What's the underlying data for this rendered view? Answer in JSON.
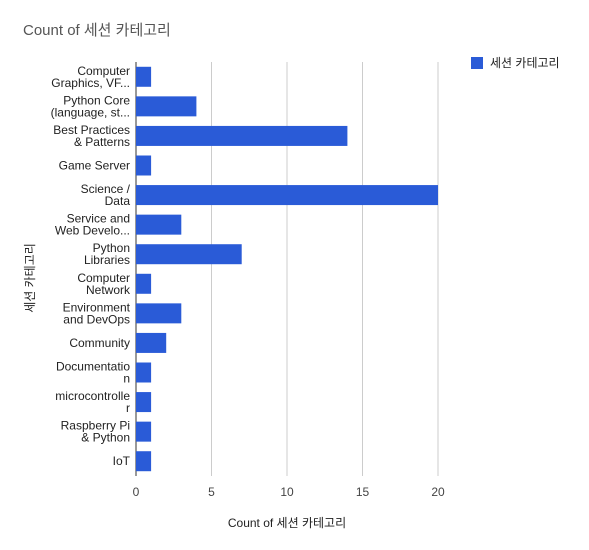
{
  "chart_data": {
    "type": "bar",
    "orientation": "horizontal",
    "title": "Count of 세션 카테고리",
    "xlabel": "Count of 세션 카테고리",
    "ylabel": "세션 카테고리",
    "categories": [
      [
        "Computer",
        "Graphics, VF..."
      ],
      [
        "Python Core",
        "(language, st..."
      ],
      [
        "Best Practices",
        "& Patterns"
      ],
      [
        "Game Server"
      ],
      [
        "Science /",
        "Data"
      ],
      [
        "Service and",
        "Web Develo..."
      ],
      [
        "Python",
        "Libraries"
      ],
      [
        "Computer",
        "Network"
      ],
      [
        "Environment",
        "and DevOps"
      ],
      [
        "Community"
      ],
      [
        "Documentatio",
        "n"
      ],
      [
        "microcontrolle",
        "r"
      ],
      [
        "Raspberry Pi",
        "& Python"
      ],
      [
        "IoT"
      ]
    ],
    "series": [
      {
        "name": "세션 카테고리",
        "color": "#2a5bd7",
        "values": [
          1,
          4,
          14,
          1,
          20,
          3,
          7,
          1,
          3,
          2,
          1,
          1,
          1,
          1
        ]
      }
    ],
    "xlim": [
      0,
      20
    ],
    "xticks": [
      "0",
      "5",
      "10",
      "15",
      "20"
    ],
    "grid": true,
    "legend_position": "right"
  }
}
